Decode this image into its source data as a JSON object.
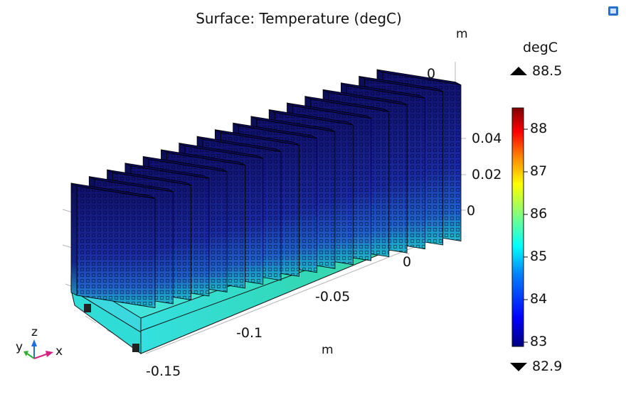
{
  "plot": {
    "title": "Surface: Temperature (degC)",
    "axis_unit_x": "m",
    "axis_unit_z": "m",
    "x_ticks": [
      "-0.15",
      "-0.1",
      "-0.05",
      "0"
    ],
    "y_ticks": [
      "0"
    ],
    "z_ticks": [
      "0.04",
      "0.02",
      "0"
    ],
    "fin_count": 18,
    "triad": {
      "x": "x",
      "y": "y",
      "z": "z"
    }
  },
  "colorbar": {
    "unit": "degC",
    "max_label": "88.5",
    "min_label": "82.9",
    "max": 88.5,
    "min": 82.9,
    "ticks": [
      "88",
      "87",
      "86",
      "85",
      "84",
      "83"
    ],
    "tick_values": [
      88,
      87,
      86,
      85,
      84,
      83
    ],
    "colormap": [
      "#00007f",
      "#0000ff",
      "#007fff",
      "#00ffff",
      "#7fff7f",
      "#ffff00",
      "#ff7f00",
      "#ff0000",
      "#7f0000"
    ]
  },
  "icon": {
    "name": "graphics-window-icon"
  }
}
